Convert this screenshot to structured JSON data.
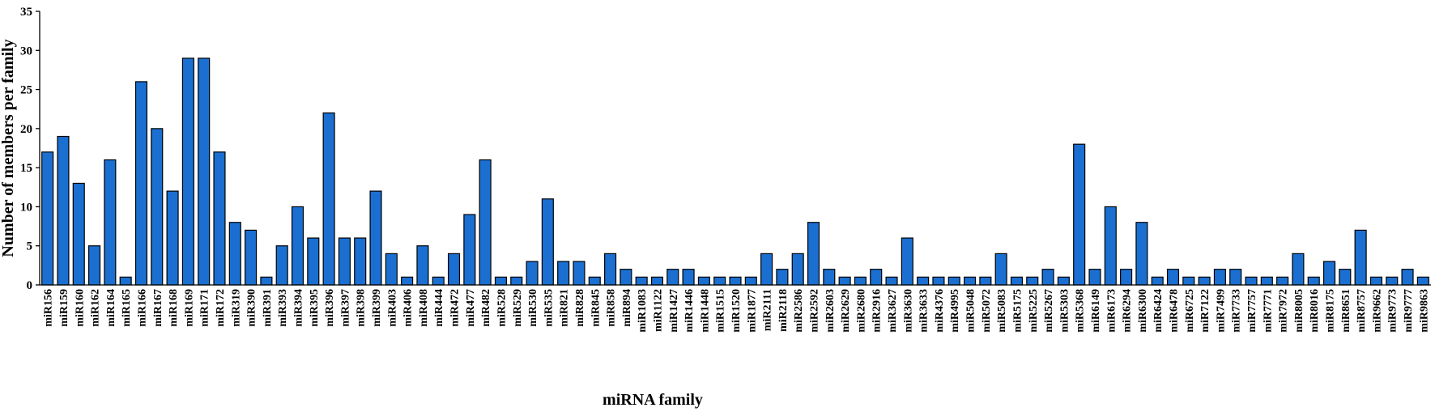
{
  "chart_data": {
    "type": "bar",
    "xlabel": "miRNA family",
    "ylabel": "Number of members per family",
    "ylim": [
      0,
      35
    ],
    "yticks": [
      0,
      5,
      10,
      15,
      20,
      25,
      30,
      35
    ],
    "grid": false,
    "legend": "none",
    "bar_color": "#1a6fd1",
    "categories": [
      "miR156",
      "miR159",
      "miR160",
      "miR162",
      "miR164",
      "miR165",
      "miR166",
      "miR167",
      "miR168",
      "miR169",
      "miR171",
      "miR172",
      "miR319",
      "miR390",
      "miR391",
      "miR393",
      "miR394",
      "miR395",
      "miR396",
      "miR397",
      "miR398",
      "miR399",
      "miR403",
      "miR406",
      "miR408",
      "miR444",
      "miR472",
      "miR477",
      "miR482",
      "miR528",
      "miR529",
      "miR530",
      "miR535",
      "miR821",
      "miR828",
      "miR845",
      "miR858",
      "miR894",
      "miR1083",
      "miR1122",
      "miR1427",
      "miR1446",
      "miR1448",
      "miR1515",
      "miR1520",
      "miR1877",
      "miR2111",
      "miR2118",
      "miR2586",
      "miR2592",
      "miR2603",
      "miR2629",
      "miR2680",
      "miR2916",
      "miR3627",
      "miR3630",
      "miR3633",
      "miR4376",
      "miR4995",
      "miR5048",
      "miR5072",
      "miR5083",
      "miR5175",
      "miR5225",
      "miR5267",
      "miR5303",
      "miR5368",
      "miR6149",
      "miR6173",
      "miR6294",
      "miR6300",
      "miR6424",
      "miR6478",
      "miR6725",
      "miR7122",
      "miR7499",
      "miR7733",
      "miR7757",
      "miR7771",
      "miR7972",
      "miR8005",
      "miR8016",
      "miR8175",
      "miR8651",
      "miR8757",
      "miR9662",
      "miR9773",
      "miR9777",
      "miR9863"
    ],
    "values": [
      17,
      19,
      13,
      5,
      16,
      1,
      26,
      20,
      12,
      29,
      29,
      17,
      8,
      7,
      1,
      5,
      10,
      6,
      22,
      6,
      6,
      12,
      4,
      1,
      5,
      1,
      4,
      9,
      16,
      1,
      1,
      3,
      11,
      3,
      3,
      1,
      4,
      2,
      1,
      1,
      2,
      2,
      1,
      1,
      1,
      1,
      4,
      2,
      4,
      8,
      2,
      1,
      1,
      2,
      1,
      6,
      1,
      1,
      1,
      1,
      1,
      4,
      1,
      1,
      2,
      1,
      18,
      2,
      10,
      2,
      8,
      1,
      2,
      1,
      1,
      2,
      2,
      1,
      1,
      1,
      4,
      1,
      3,
      2,
      7,
      1,
      1,
      2,
      1
    ]
  }
}
